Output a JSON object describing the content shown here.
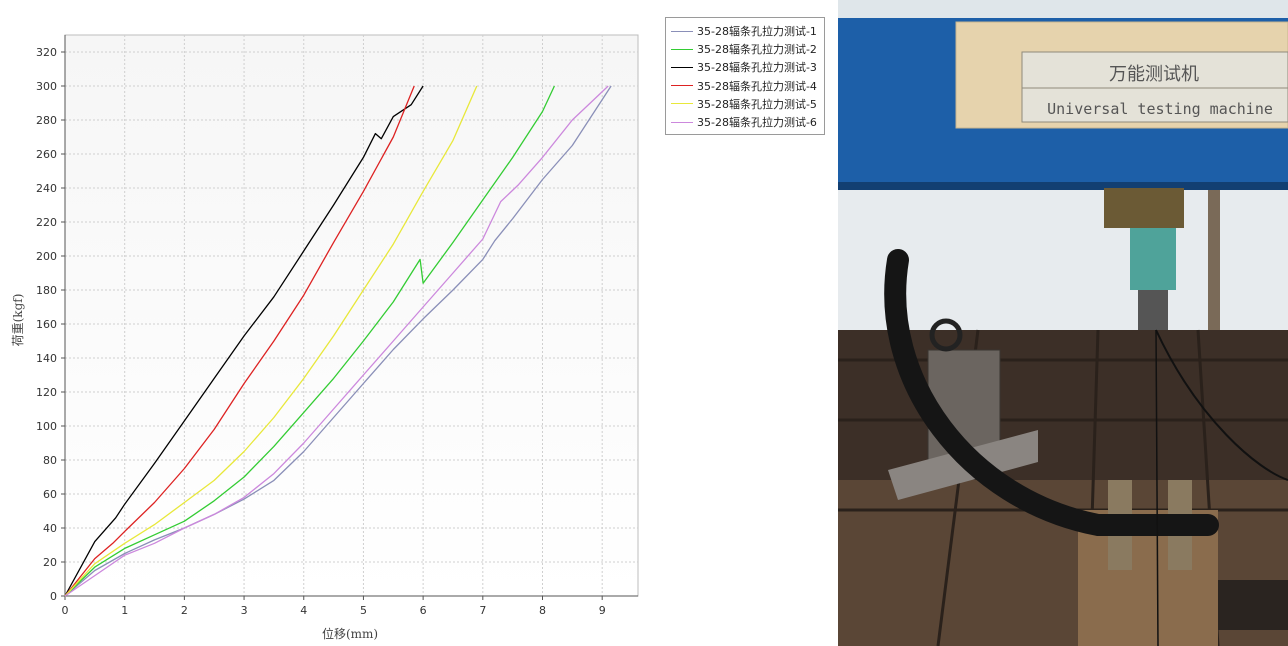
{
  "chart_data": {
    "type": "line",
    "xlabel": "位移(mm)",
    "ylabel": "荷重(kgf)",
    "xlim": [
      0,
      9.6
    ],
    "ylim": [
      0,
      330
    ],
    "x_ticks": [
      0,
      1,
      2,
      3,
      4,
      5,
      6,
      7,
      8,
      9
    ],
    "y_ticks": [
      0,
      20,
      40,
      60,
      80,
      100,
      120,
      140,
      160,
      180,
      200,
      220,
      240,
      260,
      280,
      300,
      320
    ],
    "grid": true,
    "legend_position": "top-right",
    "series": [
      {
        "name": "35-28辐条孔拉力测试-1",
        "color": "#8a8fb8",
        "points": [
          [
            0,
            0
          ],
          [
            0.5,
            15
          ],
          [
            1,
            25
          ],
          [
            1.5,
            33
          ],
          [
            2,
            40
          ],
          [
            2.5,
            48
          ],
          [
            3,
            57
          ],
          [
            3.5,
            68
          ],
          [
            4,
            85
          ],
          [
            4.5,
            105
          ],
          [
            5,
            125
          ],
          [
            5.5,
            145
          ],
          [
            6,
            163
          ],
          [
            6.5,
            180
          ],
          [
            7,
            198
          ],
          [
            7.2,
            209
          ],
          [
            7.5,
            222
          ],
          [
            8,
            245
          ],
          [
            8.5,
            265
          ],
          [
            9.15,
            300
          ]
        ]
      },
      {
        "name": "35-28辐条孔拉力测试-2",
        "color": "#33cc33",
        "points": [
          [
            0,
            0
          ],
          [
            0.5,
            17
          ],
          [
            1,
            28
          ],
          [
            1.5,
            36
          ],
          [
            2,
            44
          ],
          [
            2.5,
            56
          ],
          [
            3,
            70
          ],
          [
            3.5,
            88
          ],
          [
            4,
            108
          ],
          [
            4.5,
            128
          ],
          [
            5,
            150
          ],
          [
            5.5,
            173
          ],
          [
            5.95,
            198
          ],
          [
            6,
            184
          ],
          [
            6.5,
            208
          ],
          [
            7,
            233
          ],
          [
            7.5,
            258
          ],
          [
            8,
            285
          ],
          [
            8.2,
            300
          ]
        ]
      },
      {
        "name": "35-28辐条孔拉力测试-3",
        "color": "#000000",
        "points": [
          [
            0,
            0
          ],
          [
            0.5,
            32
          ],
          [
            0.85,
            46
          ],
          [
            1,
            54
          ],
          [
            1.5,
            78
          ],
          [
            2,
            103
          ],
          [
            2.5,
            128
          ],
          [
            3,
            153
          ],
          [
            3.5,
            176
          ],
          [
            4,
            203
          ],
          [
            4.5,
            230
          ],
          [
            5,
            258
          ],
          [
            5.2,
            272
          ],
          [
            5.3,
            269
          ],
          [
            5.5,
            282
          ],
          [
            5.8,
            289
          ],
          [
            6,
            300
          ]
        ]
      },
      {
        "name": "35-28辐条孔拉力测试-4",
        "color": "#dd2222",
        "points": [
          [
            0,
            0
          ],
          [
            0.5,
            22
          ],
          [
            0.8,
            31
          ],
          [
            1,
            38
          ],
          [
            1.5,
            55
          ],
          [
            2,
            75
          ],
          [
            2.5,
            98
          ],
          [
            3,
            125
          ],
          [
            3.5,
            150
          ],
          [
            4,
            177
          ],
          [
            4.5,
            208
          ],
          [
            5,
            238
          ],
          [
            5.5,
            270
          ],
          [
            5.85,
            300
          ]
        ]
      },
      {
        "name": "35-28辐条孔拉力测试-5",
        "color": "#e8e83a",
        "points": [
          [
            0,
            0
          ],
          [
            0.5,
            19
          ],
          [
            1,
            31
          ],
          [
            1.5,
            42
          ],
          [
            2,
            55
          ],
          [
            2.5,
            68
          ],
          [
            3,
            85
          ],
          [
            3.5,
            105
          ],
          [
            4,
            128
          ],
          [
            4.5,
            153
          ],
          [
            5,
            180
          ],
          [
            5.5,
            207
          ],
          [
            6,
            238
          ],
          [
            6.5,
            268
          ],
          [
            6.9,
            300
          ]
        ]
      },
      {
        "name": "35-28辐条孔拉力测试-6",
        "color": "#cc88dd",
        "points": [
          [
            0,
            0
          ],
          [
            0.5,
            12
          ],
          [
            1,
            24
          ],
          [
            1.5,
            31
          ],
          [
            2,
            40
          ],
          [
            2.5,
            48
          ],
          [
            3,
            58
          ],
          [
            3.5,
            72
          ],
          [
            4,
            90
          ],
          [
            4.5,
            110
          ],
          [
            5,
            130
          ],
          [
            5.5,
            150
          ],
          [
            6,
            170
          ],
          [
            6.5,
            190
          ],
          [
            7,
            210
          ],
          [
            7.3,
            232
          ],
          [
            7.6,
            242
          ],
          [
            8,
            258
          ],
          [
            8.5,
            280
          ],
          [
            8.8,
            290
          ],
          [
            9.1,
            300
          ]
        ]
      }
    ]
  },
  "photo": {
    "sign_chinese": "万能测试机",
    "sign_english": "Universal testing machine"
  }
}
